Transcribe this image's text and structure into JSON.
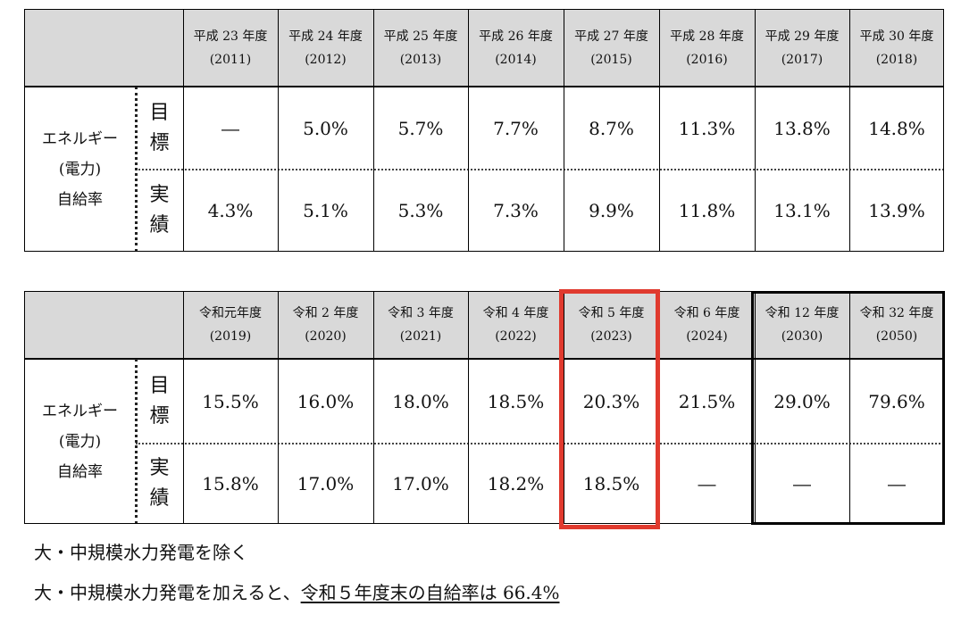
{
  "tables": [
    {
      "header": [
        {
          "era": "平成 23 年度",
          "year": "(2011)"
        },
        {
          "era": "平成 24 年度",
          "year": "(2012)"
        },
        {
          "era": "平成 25 年度",
          "year": "(2013)"
        },
        {
          "era": "平成 26 年度",
          "year": "(2014)"
        },
        {
          "era": "平成 27 年度",
          "year": "(2015)"
        },
        {
          "era": "平成 28 年度",
          "year": "(2016)"
        },
        {
          "era": "平成 29 年度",
          "year": "(2017)"
        },
        {
          "era": "平成 30 年度",
          "year": "(2018)"
        }
      ],
      "row_label": [
        "エネルギー",
        "(電力)",
        "自給率"
      ],
      "rows": [
        {
          "label": [
            "目",
            "標"
          ],
          "values": [
            "―",
            "5.0%",
            "5.7%",
            "7.7%",
            "8.7%",
            "11.3%",
            "13.8%",
            "14.8%"
          ]
        },
        {
          "label": [
            "実",
            "績"
          ],
          "values": [
            "4.3%",
            "5.1%",
            "5.3%",
            "7.3%",
            "9.9%",
            "11.8%",
            "13.1%",
            "13.9%"
          ]
        }
      ]
    },
    {
      "header": [
        {
          "era": "令和元年度",
          "year": "(2019)"
        },
        {
          "era": "令和 2 年度",
          "year": "(2020)"
        },
        {
          "era": "令和 3 年度",
          "year": "(2021)"
        },
        {
          "era": "令和 4 年度",
          "year": "(2022)"
        },
        {
          "era": "令和 5 年度",
          "year": "(2023)"
        },
        {
          "era": "令和 6 年度",
          "year": "(2024)"
        },
        {
          "era": "令和 12 年度",
          "year": "(2030)"
        },
        {
          "era": "令和 32 年度",
          "year": "(2050)"
        }
      ],
      "row_label": [
        "エネルギー",
        "(電力)",
        "自給率"
      ],
      "rows": [
        {
          "label": [
            "目",
            "標"
          ],
          "values": [
            "15.5%",
            "16.0%",
            "18.0%",
            "18.5%",
            "20.3%",
            "21.5%",
            "29.0%",
            "79.6%"
          ]
        },
        {
          "label": [
            "実",
            "績"
          ],
          "values": [
            "15.8%",
            "17.0%",
            "17.0%",
            "18.2%",
            "18.5%",
            "―",
            "―",
            "―"
          ]
        }
      ]
    }
  ],
  "notes": [
    {
      "text": "大・中規模水力発電を除く"
    },
    {
      "text": "大・中規模水力発電を加えると、",
      "underlined": "令和５年度末の自給率は 66.4%"
    }
  ]
}
